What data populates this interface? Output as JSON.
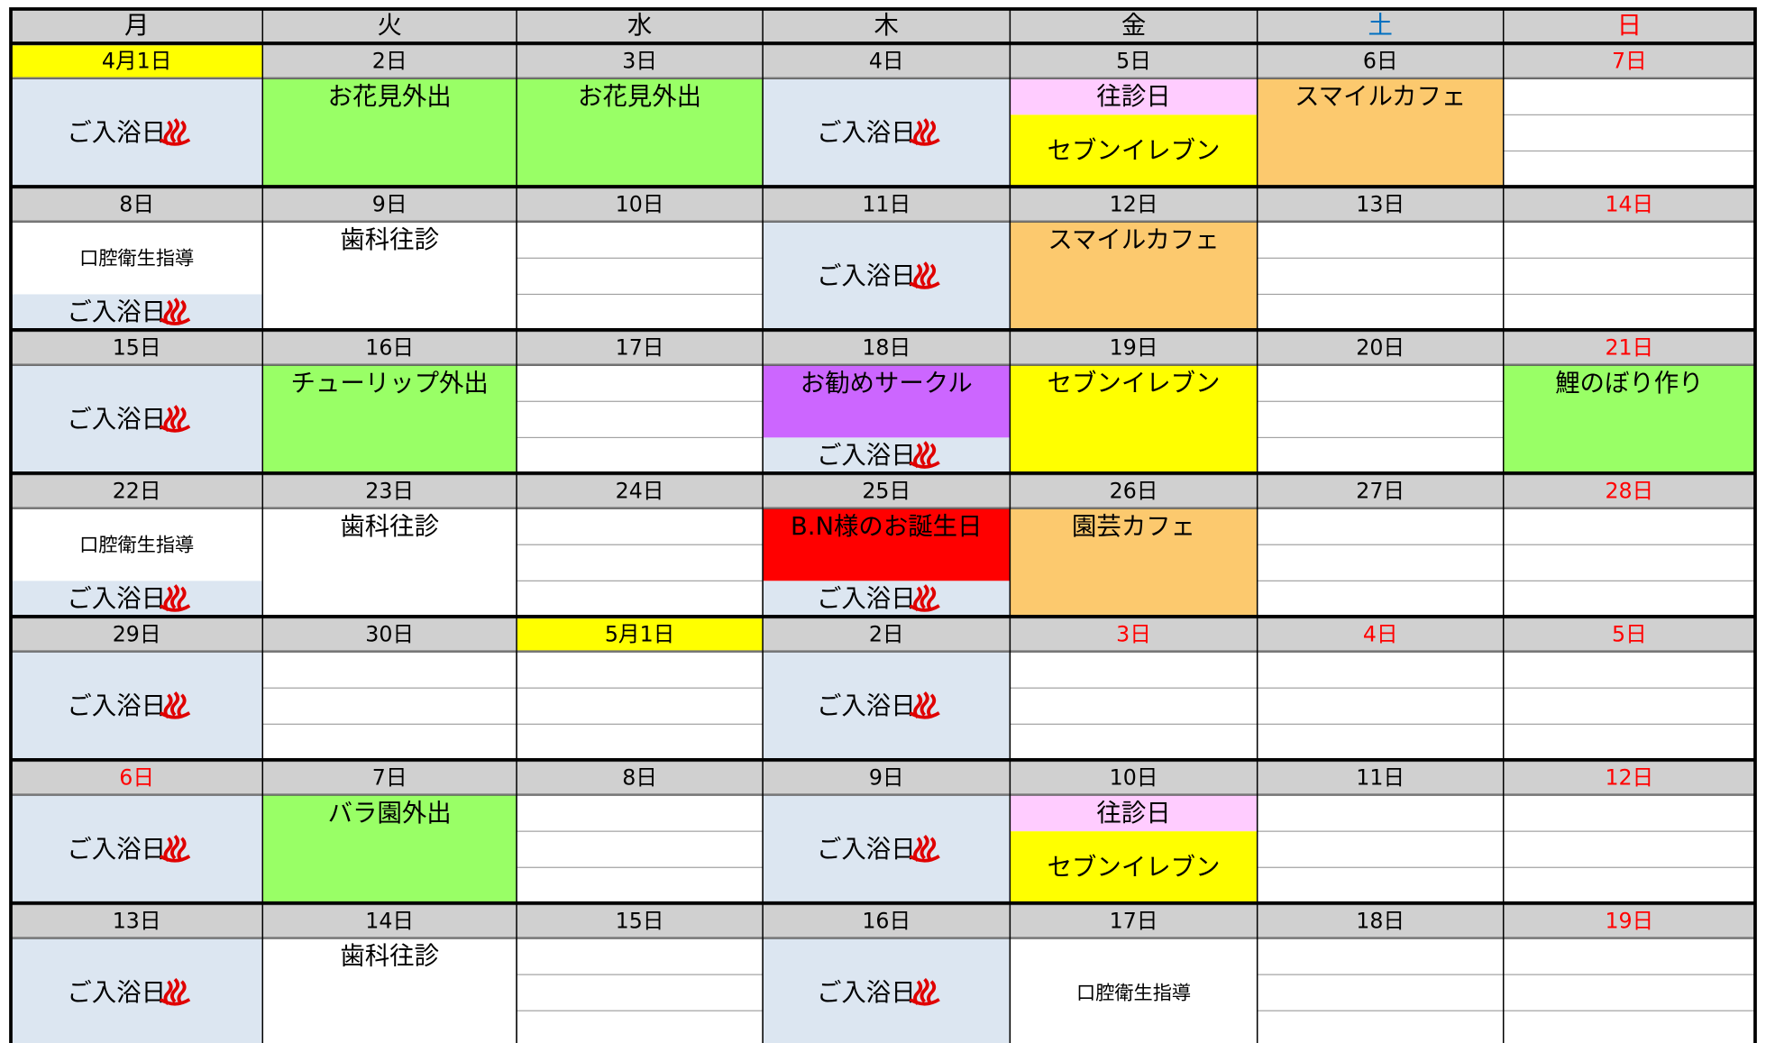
{
  "weekdays": [
    {
      "text": "月",
      "color": "#000000"
    },
    {
      "text": "火",
      "color": "#000000"
    },
    {
      "text": "水",
      "color": "#000000"
    },
    {
      "text": "木",
      "color": "#000000"
    },
    {
      "text": "金",
      "color": "#000000"
    },
    {
      "text": "土",
      "color": "#0070c0"
    },
    {
      "text": "日",
      "color": "#ff0000"
    }
  ],
  "weeks": [
    {
      "days": [
        {
          "date": "4月1日",
          "date_bg": "#ffff00",
          "events": [
            {
              "text": "ご入浴日",
              "bg": "#dce6f1",
              "rows": 3,
              "bath": true
            }
          ]
        },
        {
          "date": "2日",
          "events": [
            {
              "text": "お花見外出",
              "bg": "#99ff66",
              "rows": 3
            }
          ]
        },
        {
          "date": "3日",
          "events": [
            {
              "text": "お花見外出",
              "bg": "#99ff66",
              "rows": 3
            }
          ]
        },
        {
          "date": "4日",
          "events": [
            {
              "text": "ご入浴日",
              "bg": "#dce6f1",
              "rows": 3,
              "bath": true
            }
          ]
        },
        {
          "date": "5日",
          "events": [
            {
              "text": "往診日",
              "bg": "#ffccff",
              "rows": 1
            },
            {
              "text": "セブンイレブン",
              "bg": "#ffff00",
              "rows": 2
            }
          ]
        },
        {
          "date": "6日",
          "events": [
            {
              "text": "スマイルカフェ",
              "bg": "#fcc96e",
              "rows": 3
            }
          ]
        },
        {
          "date": "7日",
          "date_color": "#ff0000",
          "events": []
        }
      ]
    },
    {
      "days": [
        {
          "date": "8日",
          "events": [
            {
              "text": "口腔衛生指導",
              "bg": "#ffffff",
              "rows": 2,
              "small": true
            },
            {
              "text": "ご入浴日",
              "bg": "#dce6f1",
              "rows": 1,
              "bath": true
            }
          ]
        },
        {
          "date": "9日",
          "events": [
            {
              "text": "歯科往診",
              "bg": "#ffffff",
              "rows": 3
            }
          ]
        },
        {
          "date": "10日",
          "events": []
        },
        {
          "date": "11日",
          "events": [
            {
              "text": "ご入浴日",
              "bg": "#dce6f1",
              "rows": 3,
              "bath": true
            }
          ]
        },
        {
          "date": "12日",
          "events": [
            {
              "text": "スマイルカフェ",
              "bg": "#fcc96e",
              "rows": 3
            }
          ]
        },
        {
          "date": "13日",
          "events": []
        },
        {
          "date": "14日",
          "date_color": "#ff0000",
          "events": []
        }
      ]
    },
    {
      "days": [
        {
          "date": "15日",
          "events": [
            {
              "text": "ご入浴日",
              "bg": "#dce6f1",
              "rows": 3,
              "bath": true
            }
          ]
        },
        {
          "date": "16日",
          "events": [
            {
              "text": "チューリップ外出",
              "bg": "#99ff66",
              "rows": 3
            }
          ]
        },
        {
          "date": "17日",
          "events": []
        },
        {
          "date": "18日",
          "events": [
            {
              "text": "お勧めサークル",
              "bg": "#cc66ff",
              "rows": 2,
              "top": true
            },
            {
              "text": "ご入浴日",
              "bg": "#dce6f1",
              "rows": 1,
              "bath": true
            }
          ]
        },
        {
          "date": "19日",
          "events": [
            {
              "text": "セブンイレブン",
              "bg": "#ffff00",
              "rows": 3
            }
          ]
        },
        {
          "date": "20日",
          "events": []
        },
        {
          "date": "21日",
          "date_color": "#ff0000",
          "events": [
            {
              "text": "鯉のぼり作り",
              "bg": "#99ff66",
              "rows": 3
            }
          ]
        }
      ]
    },
    {
      "days": [
        {
          "date": "22日",
          "events": [
            {
              "text": "口腔衛生指導",
              "bg": "#ffffff",
              "rows": 2,
              "small": true
            },
            {
              "text": "ご入浴日",
              "bg": "#dce6f1",
              "rows": 1,
              "bath": true
            }
          ]
        },
        {
          "date": "23日",
          "events": [
            {
              "text": "歯科往診",
              "bg": "#ffffff",
              "rows": 3
            }
          ]
        },
        {
          "date": "24日",
          "events": []
        },
        {
          "date": "25日",
          "events": [
            {
              "text": "B.N様のお誕生日",
              "bg": "#ff0000",
              "rows": 2,
              "top": true
            },
            {
              "text": "ご入浴日",
              "bg": "#dce6f1",
              "rows": 1,
              "bath": true
            }
          ]
        },
        {
          "date": "26日",
          "events": [
            {
              "text": "園芸カフェ",
              "bg": "#fcc96e",
              "rows": 3
            }
          ]
        },
        {
          "date": "27日",
          "events": []
        },
        {
          "date": "28日",
          "date_color": "#ff0000",
          "events": []
        }
      ]
    },
    {
      "days": [
        {
          "date": "29日",
          "events": [
            {
              "text": "ご入浴日",
              "bg": "#dce6f1",
              "rows": 3,
              "bath": true
            }
          ]
        },
        {
          "date": "30日",
          "events": []
        },
        {
          "date": "5月1日",
          "date_bg": "#ffff00",
          "events": []
        },
        {
          "date": "2日",
          "events": [
            {
              "text": "ご入浴日",
              "bg": "#dce6f1",
              "rows": 3,
              "bath": true
            }
          ]
        },
        {
          "date": "3日",
          "date_color": "#ff0000",
          "events": []
        },
        {
          "date": "4日",
          "date_color": "#ff0000",
          "events": []
        },
        {
          "date": "5日",
          "date_color": "#ff0000",
          "events": []
        }
      ]
    },
    {
      "days": [
        {
          "date": "6日",
          "date_color": "#ff0000",
          "events": [
            {
              "text": "ご入浴日",
              "bg": "#dce6f1",
              "rows": 3,
              "bath": true
            }
          ]
        },
        {
          "date": "7日",
          "events": [
            {
              "text": "バラ園外出",
              "bg": "#99ff66",
              "rows": 3
            }
          ]
        },
        {
          "date": "8日",
          "events": []
        },
        {
          "date": "9日",
          "events": [
            {
              "text": "ご入浴日",
              "bg": "#dce6f1",
              "rows": 3,
              "bath": true
            }
          ]
        },
        {
          "date": "10日",
          "events": [
            {
              "text": "往診日",
              "bg": "#ffccff",
              "rows": 1
            },
            {
              "text": "セブンイレブン",
              "bg": "#ffff00",
              "rows": 2
            }
          ]
        },
        {
          "date": "11日",
          "events": []
        },
        {
          "date": "12日",
          "date_color": "#ff0000",
          "events": []
        }
      ]
    },
    {
      "days": [
        {
          "date": "13日",
          "events": [
            {
              "text": "ご入浴日",
              "bg": "#dce6f1",
              "rows": 3,
              "bath": true
            }
          ]
        },
        {
          "date": "14日",
          "events": [
            {
              "text": "歯科往診",
              "bg": "#ffffff",
              "rows": 3
            }
          ]
        },
        {
          "date": "15日",
          "events": []
        },
        {
          "date": "16日",
          "events": [
            {
              "text": "ご入浴日",
              "bg": "#dce6f1",
              "rows": 3,
              "bath": true
            }
          ]
        },
        {
          "date": "17日",
          "events": [
            {
              "text": "口腔衛生指導",
              "bg": "#ffffff",
              "rows": 3,
              "small": true
            }
          ]
        },
        {
          "date": "18日",
          "events": []
        },
        {
          "date": "19日",
          "date_color": "#ff0000",
          "events": []
        }
      ]
    }
  ]
}
